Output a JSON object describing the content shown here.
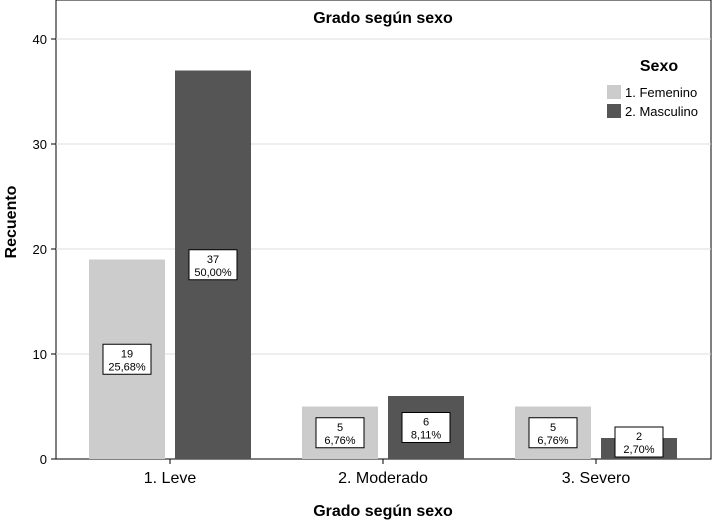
{
  "chart_data": {
    "type": "bar",
    "title": "Grado según sexo",
    "xlabel": "Grado según sexo",
    "ylabel": "Recuento",
    "categories": [
      "1. Leve",
      "2. Moderado",
      "3. Severo"
    ],
    "series": [
      {
        "name": "1. Femenino",
        "color": "#cccccc",
        "values": [
          19,
          5,
          5
        ],
        "labels": [
          "25,68%",
          "6,76%",
          "6,76%"
        ]
      },
      {
        "name": "2. Masculino",
        "color": "#555555",
        "values": [
          37,
          6,
          2
        ],
        "labels": [
          "50,00%",
          "8,11%",
          "2,70%"
        ]
      }
    ],
    "ylim": [
      0,
      40
    ],
    "yticks": [
      0,
      10,
      20,
      30,
      40
    ],
    "grid": true,
    "legend": {
      "title": "Sexo",
      "position": "top-right"
    }
  }
}
